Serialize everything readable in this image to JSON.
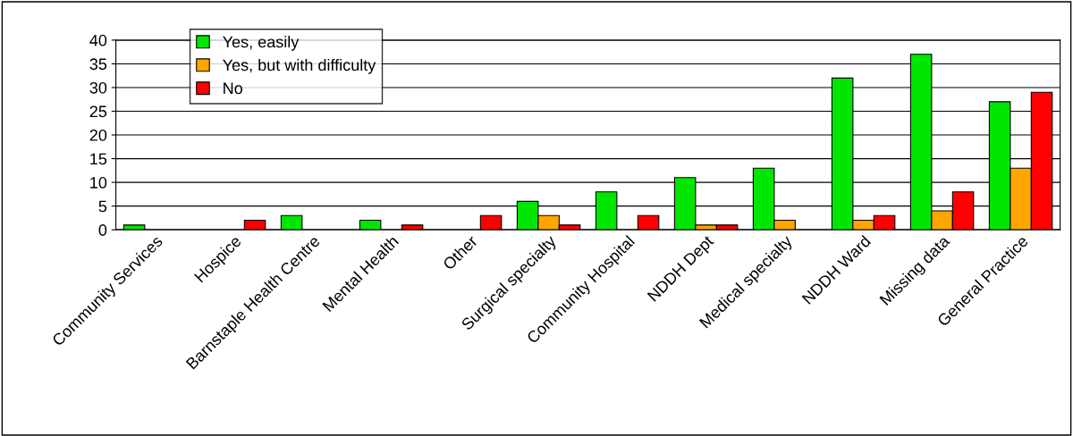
{
  "chart_data": {
    "type": "bar",
    "categories": [
      "Community Services",
      "Hospice",
      "Barnstaple Health Centre",
      "Mental Health",
      "Other",
      "Surgical specialty",
      "Community Hospital",
      "NDDH Dept",
      "Medical specialty",
      "NDDH Ward",
      "Missing data",
      "General Practice"
    ],
    "series": [
      {
        "name": "Yes, easily",
        "color": "#00e600",
        "values": [
          1,
          null,
          3,
          2,
          null,
          6,
          8,
          11,
          13,
          32,
          37,
          27
        ]
      },
      {
        "name": "Yes, but with difficulty",
        "color": "#ffa500",
        "values": [
          null,
          null,
          null,
          null,
          null,
          3,
          null,
          1,
          2,
          2,
          4,
          13
        ]
      },
      {
        "name": "No",
        "color": "#ff0000",
        "values": [
          null,
          2,
          null,
          1,
          3,
          1,
          3,
          1,
          null,
          3,
          8,
          29
        ]
      }
    ],
    "ylim": [
      0,
      40
    ],
    "yticks": [
      0,
      5,
      10,
      15,
      20,
      25,
      30,
      35,
      40
    ],
    "grid": "y",
    "legend": "top left"
  }
}
